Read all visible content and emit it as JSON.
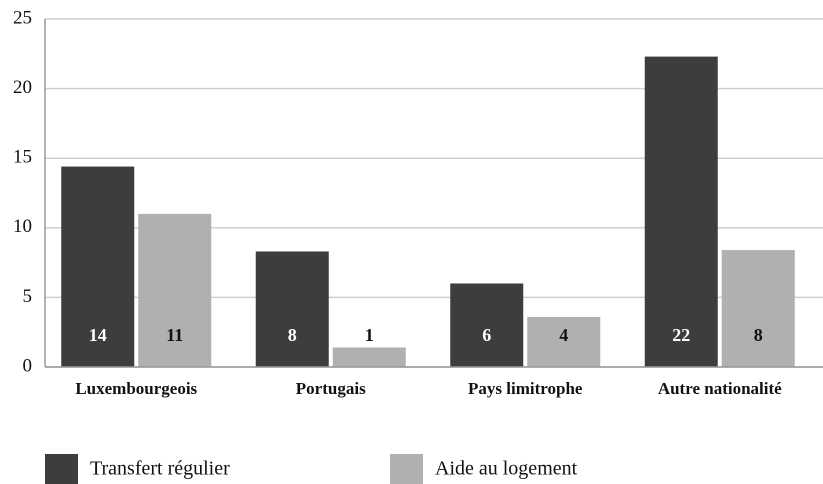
{
  "chart_data": {
    "type": "bar",
    "categories": [
      "Luxembourgeois",
      "Portugais",
      "Pays limitrophe",
      "Autre nationalité"
    ],
    "series": [
      {
        "name": "Transfert régulier",
        "color": "#3d3d3d",
        "values": [
          14.4,
          8.3,
          6.0,
          22.3
        ],
        "value_labels": [
          "14",
          "8",
          "6",
          "22"
        ]
      },
      {
        "name": "Aide au logement",
        "color": "#b0b0b0",
        "values": [
          11.0,
          1.4,
          3.6,
          8.4
        ],
        "value_labels": [
          "11",
          "1",
          "4",
          "8"
        ]
      }
    ],
    "ylim": [
      0,
      25
    ],
    "yticks": [
      0,
      5,
      10,
      15,
      20,
      25
    ],
    "grid": true,
    "legend": "bottom"
  }
}
